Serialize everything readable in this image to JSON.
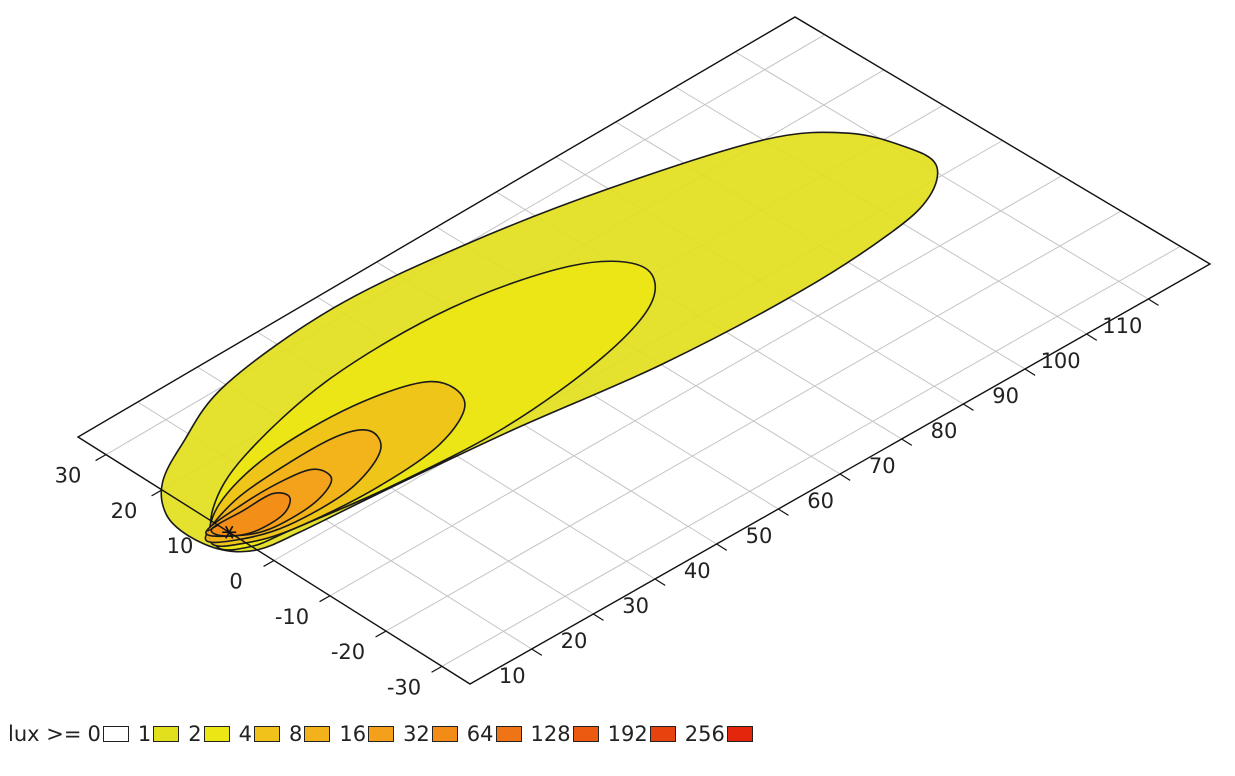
{
  "chart_data": {
    "type": "heatmap",
    "title": "",
    "subtitle": "",
    "xlabel": "",
    "ylabel": "",
    "grid": true,
    "x_axis_ticks": [
      "10",
      "20",
      "30",
      "40",
      "50",
      "60",
      "70",
      "80",
      "90",
      "100",
      "110"
    ],
    "y_axis_ticks": [
      "30",
      "20",
      "10",
      "0",
      "-10",
      "-20",
      "-30"
    ],
    "xlim": [
      0,
      120
    ],
    "ylim": [
      -35,
      35
    ],
    "source_point": {
      "x": 0,
      "y": 8
    },
    "legend_prefix": "lux >= ",
    "legend": [
      {
        "label": "0",
        "color": "#ffffff"
      },
      {
        "label": "1",
        "color": "#e2e01d"
      },
      {
        "label": "2",
        "color": "#ede615"
      },
      {
        "label": "4",
        "color": "#f0c21a"
      },
      {
        "label": "8",
        "color": "#f3b21b"
      },
      {
        "label": "16",
        "color": "#f4a01b"
      },
      {
        "label": "32",
        "color": "#f28c16"
      },
      {
        "label": "64",
        "color": "#ef7415"
      },
      {
        "label": "128",
        "color": "#ec5a12"
      },
      {
        "label": "192",
        "color": "#e8420f"
      },
      {
        "label": "256",
        "color": "#e4260c"
      }
    ],
    "isolux_contours": [
      {
        "level": 1,
        "color": "#e2e01d",
        "points": [
          [
            -3,
            16
          ],
          [
            1,
            21
          ],
          [
            8,
            25
          ],
          [
            20,
            30
          ],
          [
            40,
            32
          ],
          [
            60,
            30
          ],
          [
            80,
            26
          ],
          [
            100,
            20
          ],
          [
            108,
            14
          ],
          [
            111,
            7
          ],
          [
            111,
            2
          ],
          [
            106,
            -2
          ],
          [
            98,
            -4
          ],
          [
            82,
            -5
          ],
          [
            60,
            -4
          ],
          [
            38,
            -1
          ],
          [
            18,
            1
          ],
          [
            6,
            2
          ],
          [
            0,
            3
          ],
          [
            -3,
            6
          ],
          [
            -4,
            11
          ]
        ]
      },
      {
        "level": 2,
        "color": "#ede615",
        "points": [
          [
            -3,
            7
          ],
          [
            2,
            13
          ],
          [
            12,
            18
          ],
          [
            30,
            22
          ],
          [
            50,
            22
          ],
          [
            66,
            18
          ],
          [
            72,
            12
          ],
          [
            68,
            6
          ],
          [
            56,
            2
          ],
          [
            38,
            0
          ],
          [
            20,
            1
          ],
          [
            6,
            3
          ],
          [
            0,
            4
          ]
        ]
      },
      {
        "level": 4,
        "color": "#f0c21a",
        "points": [
          [
            -3,
            8
          ],
          [
            3,
            13
          ],
          [
            14,
            16
          ],
          [
            28,
            16
          ],
          [
            38,
            13
          ],
          [
            38,
            7
          ],
          [
            30,
            3
          ],
          [
            18,
            2
          ],
          [
            6,
            3
          ],
          [
            0,
            5
          ]
        ]
      },
      {
        "level": 8,
        "color": "#f3b21b",
        "points": [
          [
            -3,
            9
          ],
          [
            4,
            12
          ],
          [
            12,
            13
          ],
          [
            22,
            13
          ],
          [
            26,
            11
          ],
          [
            24,
            7
          ],
          [
            16,
            4
          ],
          [
            6,
            4
          ],
          [
            0,
            6
          ]
        ]
      },
      {
        "level": 16,
        "color": "#f4a01b",
        "points": [
          [
            -2,
            10
          ],
          [
            5,
            11
          ],
          [
            12,
            11
          ],
          [
            16,
            10
          ],
          [
            16,
            7
          ],
          [
            11,
            5
          ],
          [
            4,
            5
          ],
          [
            0,
            7
          ]
        ]
      },
      {
        "level": 32,
        "color": "#f28c16",
        "points": [
          [
            -1,
            10
          ],
          [
            4,
            10
          ],
          [
            9,
            10
          ],
          [
            10,
            8
          ],
          [
            7,
            6
          ],
          [
            2,
            6
          ],
          [
            -1,
            8
          ]
        ]
      }
    ]
  }
}
